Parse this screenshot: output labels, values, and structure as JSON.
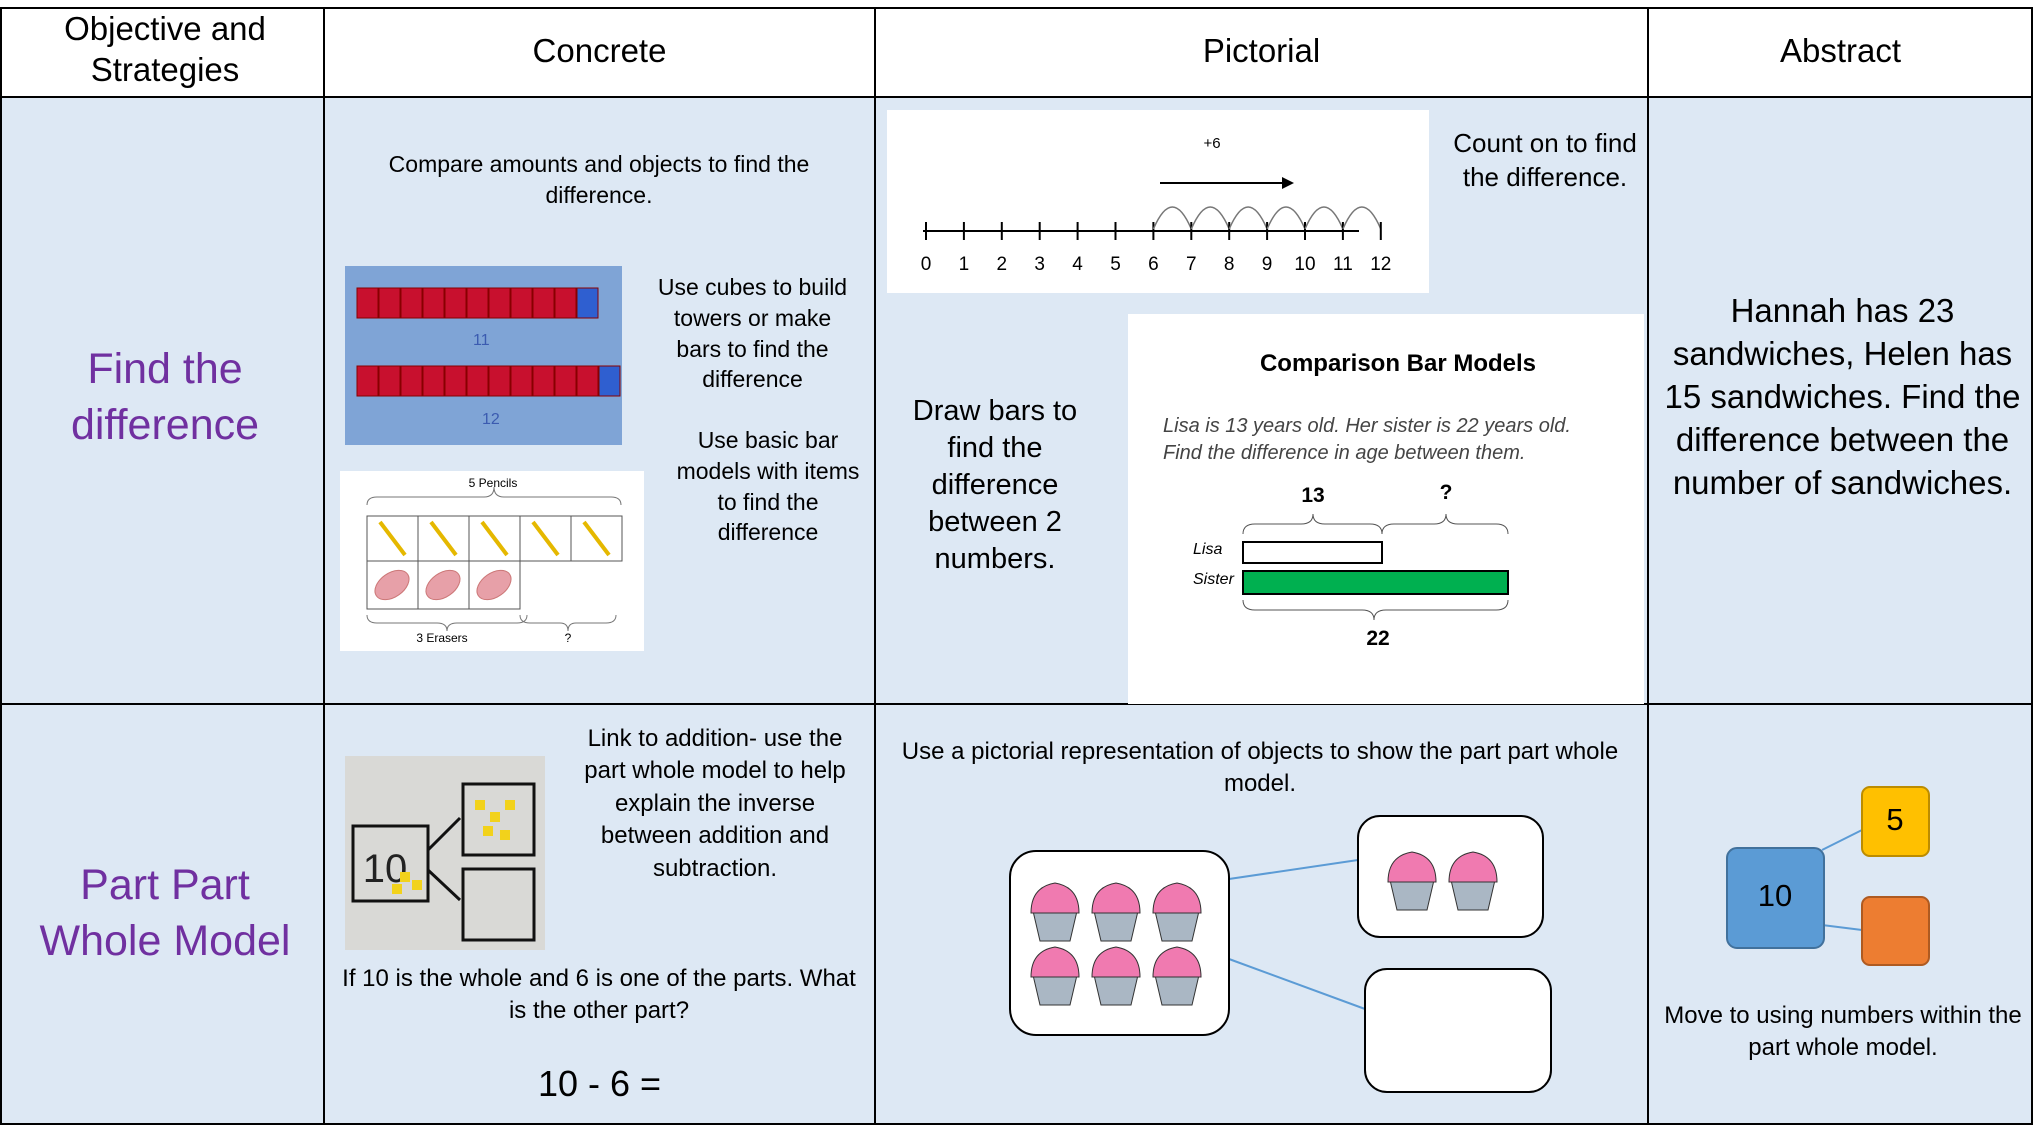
{
  "header": {
    "cells": [
      "Objective and Strategies",
      "Concrete",
      "Pictorial",
      "Abstract"
    ]
  },
  "rows": [
    {
      "objective": "Find the difference",
      "concrete": {
        "intro": "Compare amounts and objects to find the difference.",
        "cubes_text": "Use cubes to build towers or make bars to find the difference",
        "bar_text": "Use basic bar models with items to find the difference",
        "cube_labels": [
          "11",
          "12"
        ],
        "pencils_label": "5 Pencils",
        "erasers_label": "3 Erasers",
        "unknown": "?"
      },
      "pictorial": {
        "number_line_label": "+6",
        "number_line_ticks": [
          0,
          1,
          2,
          3,
          4,
          5,
          6,
          7,
          8,
          9,
          10,
          11,
          12
        ],
        "count_on_text": "Count on to find the difference.",
        "bars_text": "Draw bars to find the difference between 2 numbers.",
        "bar_model": {
          "title": "Comparison Bar Models",
          "question": "Lisa is 13 years old. Her sister is 22 years old. Find the difference in age between them.",
          "part": "13",
          "unknown": "?",
          "whole": "22",
          "rows": [
            "Lisa",
            "Sister"
          ]
        }
      },
      "abstract": "Hannah has 23 sandwiches, Helen has 15 sandwiches. Find the difference between the number of sandwiches."
    },
    {
      "objective": "Part Part Whole Model",
      "concrete": {
        "photo_label": "10",
        "link_text": "Link to addition- use the part whole model to help explain the inverse between addition and subtraction.",
        "question": "If 10 is the whole and 6 is one of the parts. What is the other part?",
        "equation": "10 - 6 ="
      },
      "pictorial": {
        "text": "Use a pictorial representation of objects to show the part part whole model."
      },
      "abstract": {
        "whole": "10",
        "part": "5",
        "text": "Move to using numbers within the part whole model."
      }
    }
  ]
}
